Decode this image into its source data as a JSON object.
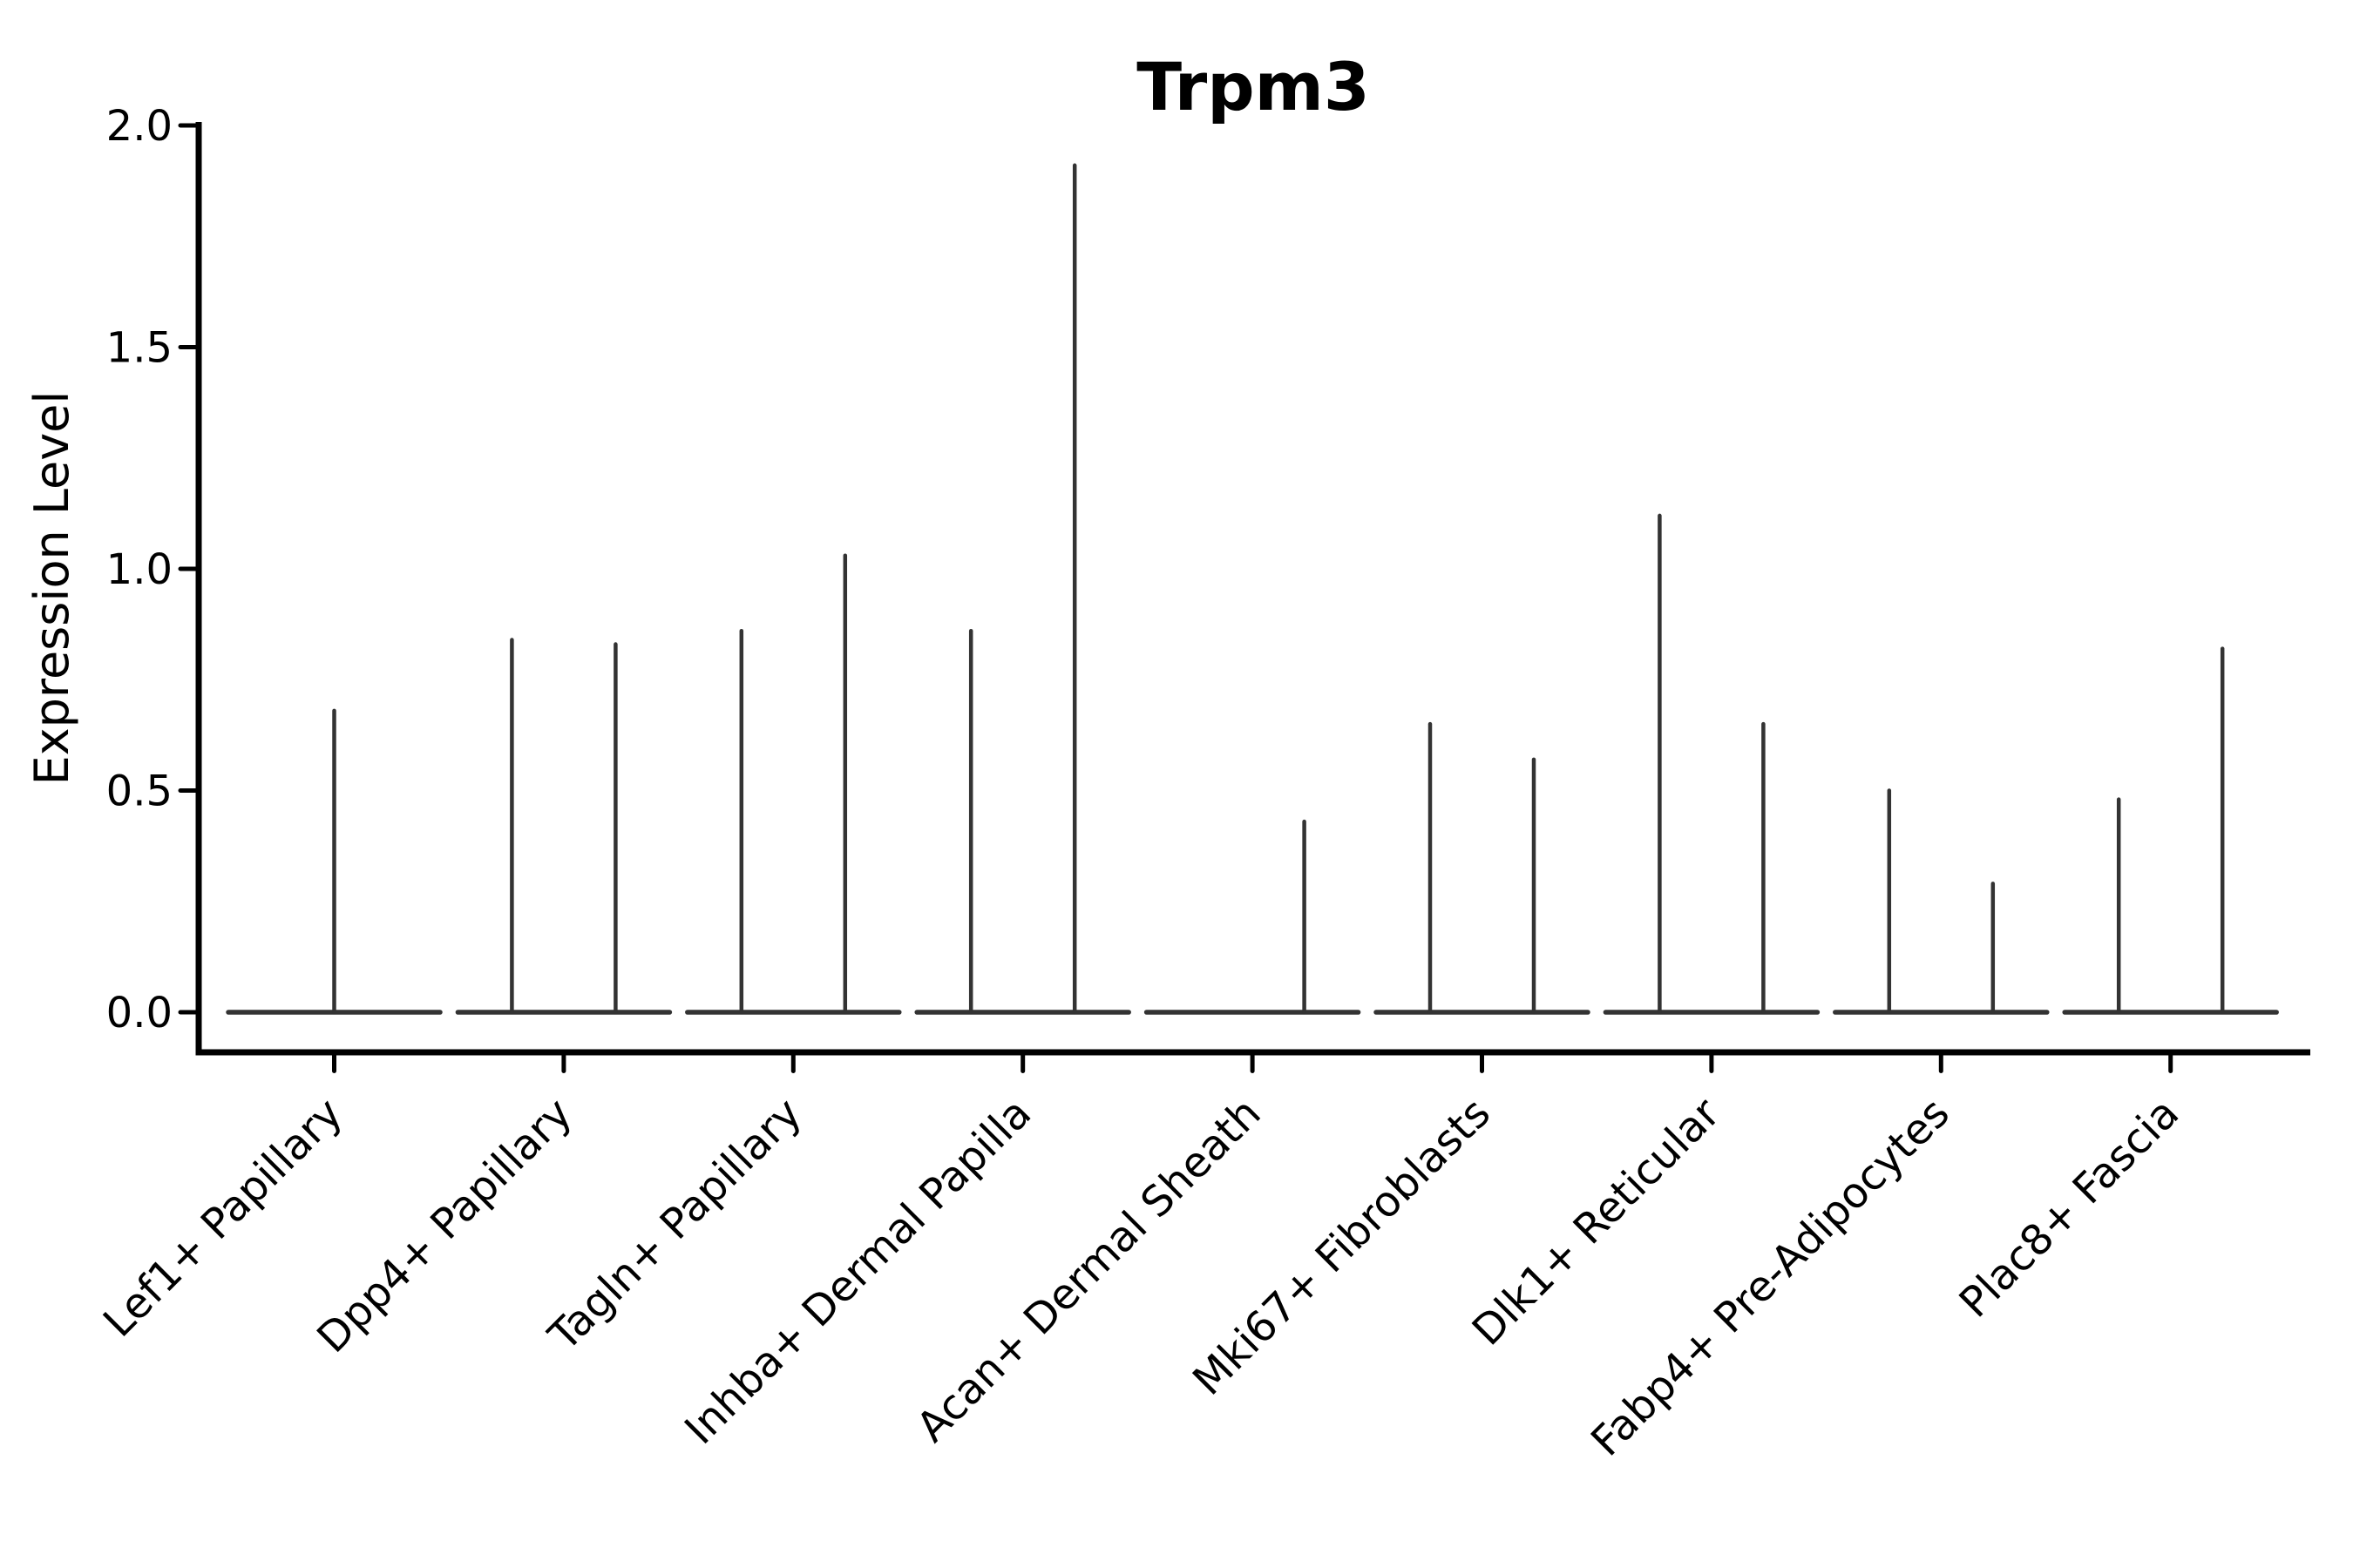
{
  "chart_data": {
    "type": "violin",
    "title": "Trpm3",
    "xlabel": "",
    "ylabel": "Expression Level",
    "ylim": [
      0.0,
      2.0
    ],
    "yticks": [
      0.0,
      0.5,
      1.0,
      1.5,
      2.0
    ],
    "ytick_labels": [
      "0.0",
      "0.5",
      "1.0",
      "1.5",
      "2.0"
    ],
    "grid": false,
    "legend_position": "none",
    "line_color": "#333333",
    "axis_color": "#000000",
    "categories": [
      "Lef1+ Papillary",
      "Dpp4+ Papillary",
      "Tagln+ Papillary",
      "Inhba+ Dermal Papilla",
      "Acan+ Dermal Sheath",
      "Mki67+ Fibroblasts",
      "Dlk1+ Reticular",
      "Fabp4+ Pre-Adipocytes",
      "Plac8+ Fascia"
    ],
    "violins": [
      {
        "category": "Lef1+ Papillary",
        "groups": [
          {
            "position": "center",
            "max": 0.68
          }
        ]
      },
      {
        "category": "Dpp4+ Papillary",
        "groups": [
          {
            "position": "left",
            "max": 0.84
          },
          {
            "position": "right",
            "max": 0.83
          }
        ]
      },
      {
        "category": "Tagln+ Papillary",
        "groups": [
          {
            "position": "left",
            "max": 0.86
          },
          {
            "position": "right",
            "max": 1.03
          }
        ]
      },
      {
        "category": "Inhba+ Dermal Papilla",
        "groups": [
          {
            "position": "left",
            "max": 0.86
          },
          {
            "position": "right",
            "max": 1.91
          }
        ]
      },
      {
        "category": "Acan+ Dermal Sheath",
        "groups": [
          {
            "position": "left",
            "max": 0.0
          },
          {
            "position": "right",
            "max": 0.43
          }
        ]
      },
      {
        "category": "Mki67+ Fibroblasts",
        "groups": [
          {
            "position": "left",
            "max": 0.65
          },
          {
            "position": "right",
            "max": 0.57
          }
        ]
      },
      {
        "category": "Dlk1+ Reticular",
        "groups": [
          {
            "position": "left",
            "max": 1.12
          },
          {
            "position": "right",
            "max": 0.65
          }
        ]
      },
      {
        "category": "Fabp4+ Pre-Adipocytes",
        "groups": [
          {
            "position": "left",
            "max": 0.5
          },
          {
            "position": "right",
            "max": 0.29
          }
        ]
      },
      {
        "category": "Plac8+ Fascia",
        "groups": [
          {
            "position": "left",
            "max": 0.48
          },
          {
            "position": "right",
            "max": 0.82
          }
        ]
      }
    ]
  }
}
